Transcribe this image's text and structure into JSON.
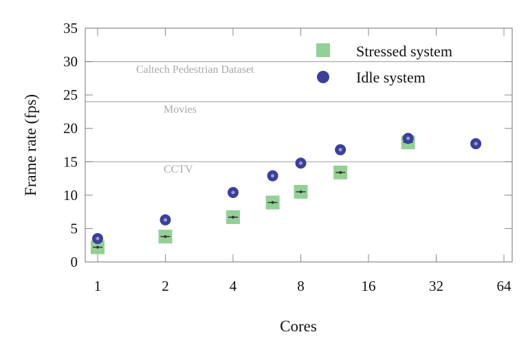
{
  "chart_data": {
    "type": "scatter",
    "title": "",
    "xlabel": "Cores",
    "ylabel": "Frame rate (fps)",
    "x_scale": "log2",
    "xlim": [
      0.9,
      70
    ],
    "ylim": [
      0,
      35
    ],
    "x_ticks": [
      1,
      2,
      4,
      8,
      16,
      32,
      64
    ],
    "x_tick_labels": [
      "1",
      "2",
      "4",
      "8",
      "16",
      "32",
      "64"
    ],
    "y_ticks": [
      0,
      5,
      10,
      15,
      20,
      25,
      30,
      35
    ],
    "y_tick_labels": [
      "0",
      "5",
      "10",
      "15",
      "20",
      "25",
      "30",
      "35"
    ],
    "grid": false,
    "legend_position": "top-right",
    "reference_lines": [
      {
        "label": "Caltech Pedestrian Dataset",
        "y": 30
      },
      {
        "label": "Movies",
        "y": 24
      },
      {
        "label": "CCTV",
        "y": 15
      }
    ],
    "series": [
      {
        "name": "Stressed system",
        "marker": "square",
        "color": "#93d095",
        "x": [
          1,
          2,
          4,
          6,
          8,
          12,
          24
        ],
        "y": [
          2.2,
          3.8,
          6.7,
          8.9,
          10.5,
          13.4,
          17.9
        ]
      },
      {
        "name": "Idle system",
        "marker": "circle",
        "color": "#3b3f9c",
        "x": [
          1,
          2,
          4,
          6,
          8,
          12,
          24,
          48
        ],
        "y": [
          3.5,
          6.3,
          10.4,
          12.9,
          14.8,
          16.8,
          18.5,
          17.7
        ]
      }
    ]
  }
}
